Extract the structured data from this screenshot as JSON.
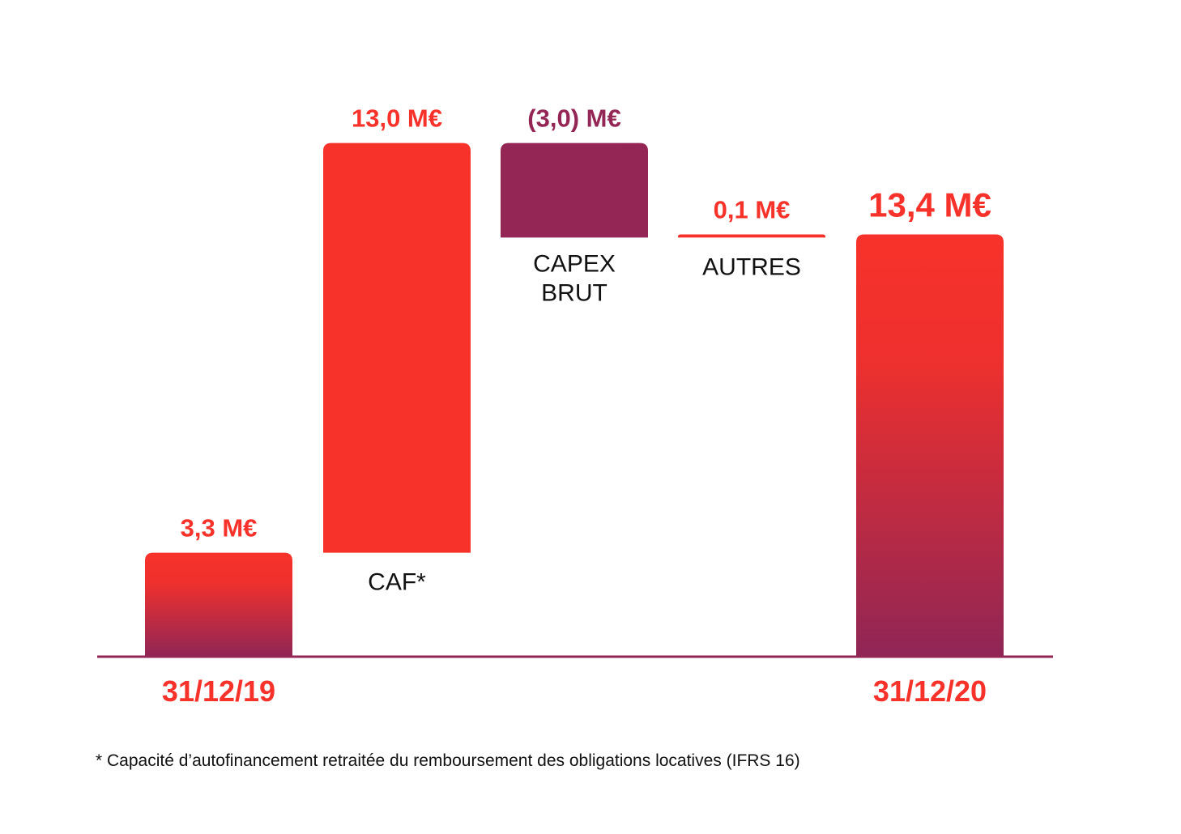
{
  "chart_data": {
    "type": "bar",
    "subtype": "waterfall",
    "categories": [
      "31/12/19",
      "CAF*",
      "CAPEX BRUT",
      "AUTRES",
      "31/12/20"
    ],
    "category_labels": [
      {
        "lines": [
          "31/12/19"
        ],
        "style": "date"
      },
      {
        "lines": [
          "CAF*"
        ],
        "style": "step"
      },
      {
        "lines": [
          "CAPEX",
          "BRUT"
        ],
        "style": "step"
      },
      {
        "lines": [
          "AUTRES"
        ],
        "style": "step"
      },
      {
        "lines": [
          "31/12/20"
        ],
        "style": "date"
      }
    ],
    "values": [
      3.3,
      13.0,
      -3.0,
      0.1,
      13.4
    ],
    "kinds": [
      "total",
      "increase",
      "decrease",
      "increase",
      "total"
    ],
    "value_labels": [
      "3,3 M€",
      "13,0 M€",
      "(3,0) M€",
      "0,1 M€",
      "13,4 M€"
    ],
    "unit": "M€",
    "ylim": [
      0,
      16.6
    ],
    "grid": false,
    "legend": "none"
  },
  "colors": {
    "red": "#f7322a",
    "plum": "#932654",
    "axis": "#932654",
    "step_label": "#111111"
  },
  "footnote": "* Capacité d’autofinancement retraitée du remboursement des obligations locatives (IFRS 16)"
}
